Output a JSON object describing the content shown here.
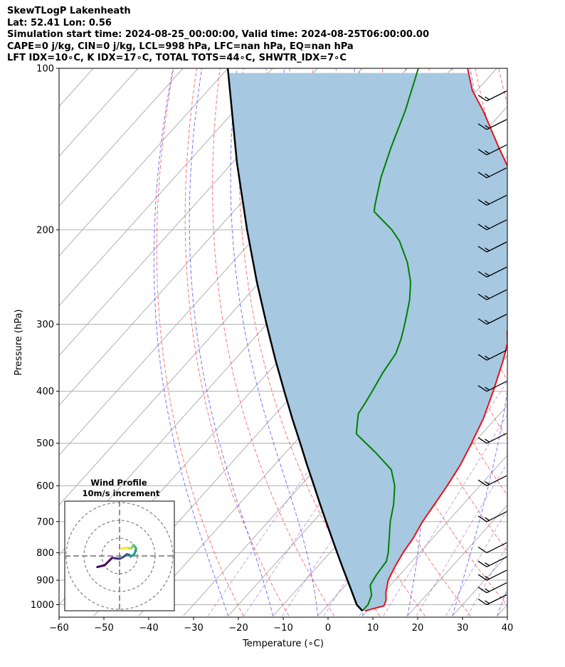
{
  "title_lines": [
    "SkewTLogP Lakenheath",
    "Lat: 52.41   Lon: 0.56",
    "Simulation start time: 2024-08-25_00:00:00, Valid time: 2024-08-25T06:00:00.00",
    "CAPE=0 j/kg, CIN=0 j/kg, LCL=998 hPa, LFC=nan hPa, EQ=nan hPa",
    "LFT IDX=10∘C, K IDX=17∘C, TOTAL TOTS=44∘C, SHWTR_IDX=7∘C"
  ],
  "chart_data": {
    "type": "line",
    "xlabel": "Temperature (∘C)",
    "ylabel": "Pressure (hPa)",
    "xlim": [
      -60,
      40
    ],
    "ylim": [
      1050,
      100
    ],
    "y_scale": "log",
    "x_ticks": [
      -60,
      -50,
      -40,
      -30,
      -20,
      -10,
      0,
      10,
      20,
      30,
      40
    ],
    "y_ticks": [
      1000,
      900,
      800,
      700,
      600,
      500,
      400,
      300,
      200,
      100
    ],
    "grid": true,
    "skew": true,
    "series": [
      {
        "name": "",
        "color": "#e8111a",
        "description": "temperature",
        "points": [
          [
            1027,
            9.5
          ],
          [
            1005,
            12.7
          ],
          [
            980,
            12.0
          ],
          [
            950,
            10.5
          ],
          [
            900,
            8.5
          ],
          [
            850,
            7.3
          ],
          [
            800,
            6.3
          ],
          [
            750,
            5.6
          ],
          [
            700,
            4.4
          ],
          [
            650,
            3.6
          ],
          [
            600,
            2.7
          ],
          [
            550,
            1.5
          ],
          [
            500,
            -0.4
          ],
          [
            450,
            -2.7
          ],
          [
            400,
            -6.0
          ],
          [
            350,
            -10.0
          ],
          [
            325,
            -12.5
          ],
          [
            310,
            -14.8
          ],
          [
            300,
            -15.7
          ],
          [
            290,
            -16.5
          ],
          [
            280,
            -17.5
          ],
          [
            250,
            -21.8
          ],
          [
            230,
            -25.5
          ],
          [
            210,
            -29.6
          ],
          [
            200,
            -32.3
          ],
          [
            190,
            -35.0
          ],
          [
            180,
            -37.6
          ],
          [
            170,
            -40.5
          ],
          [
            160,
            -44.3
          ],
          [
            150,
            -49.0
          ],
          [
            140,
            -53.9
          ],
          [
            130,
            -59.0
          ],
          [
            120,
            -64.5
          ],
          [
            110,
            -71.0
          ],
          [
            100,
            -76.5
          ]
        ]
      },
      {
        "name": "",
        "color": "#008000",
        "description": "dewpoint",
        "points": [
          [
            1027,
            8.9
          ],
          [
            1000,
            8.9
          ],
          [
            960,
            7.8
          ],
          [
            920,
            5.5
          ],
          [
            880,
            4.8
          ],
          [
            830,
            4.3
          ],
          [
            800,
            3.0
          ],
          [
            750,
            0.2
          ],
          [
            700,
            -2.8
          ],
          [
            650,
            -5.5
          ],
          [
            600,
            -9.0
          ],
          [
            560,
            -13.0
          ],
          [
            520,
            -20.0
          ],
          [
            485,
            -27.0
          ],
          [
            480,
            -28.0
          ],
          [
            460,
            -29.8
          ],
          [
            440,
            -31.6
          ],
          [
            420,
            -32.2
          ],
          [
            400,
            -33.0
          ],
          [
            370,
            -34.3
          ],
          [
            340,
            -35.3
          ],
          [
            320,
            -37.0
          ],
          [
            305,
            -38.6
          ],
          [
            290,
            -40.4
          ],
          [
            270,
            -43.0
          ],
          [
            250,
            -46.4
          ],
          [
            230,
            -51.0
          ],
          [
            210,
            -57.0
          ],
          [
            200,
            -61.0
          ],
          [
            190,
            -66.0
          ],
          [
            185,
            -68.6
          ],
          [
            180,
            -69.7
          ],
          [
            160,
            -73.9
          ],
          [
            140,
            -77.8
          ],
          [
            120,
            -81.9
          ],
          [
            100,
            -87.5
          ]
        ]
      },
      {
        "name": "",
        "color": "#000000",
        "description": "parcel",
        "points": [
          [
            1027,
            8.9
          ],
          [
            1000,
            6.4
          ],
          [
            950,
            3.0
          ],
          [
            900,
            -0.6
          ],
          [
            850,
            -4.4
          ],
          [
            800,
            -8.4
          ],
          [
            750,
            -12.6
          ],
          [
            700,
            -17.1
          ],
          [
            650,
            -21.9
          ],
          [
            600,
            -27.0
          ],
          [
            550,
            -32.6
          ],
          [
            500,
            -38.6
          ],
          [
            450,
            -45.3
          ],
          [
            400,
            -52.6
          ],
          [
            350,
            -60.8
          ],
          [
            300,
            -70.0
          ],
          [
            250,
            -80.7
          ],
          [
            200,
            -93.3
          ],
          [
            150,
            -109.0
          ],
          [
            100,
            -130.0
          ]
        ]
      }
    ],
    "isotherm_step": 10,
    "dry_adiabats_theta_K": [
      253,
      263,
      273,
      283,
      293,
      303,
      313,
      323,
      333,
      343,
      353,
      363,
      373,
      383,
      393,
      403,
      413
    ],
    "moist_adiabats_Tbase_C": [
      -20,
      -10,
      0,
      10,
      20,
      30,
      40
    ],
    "mixing_ratio_gkg": [
      0.5,
      1,
      2,
      4,
      7,
      10,
      16,
      24,
      32
    ],
    "wind_barbs": [
      {
        "p": 1000,
        "speed_kt": 15
      },
      {
        "p": 950,
        "speed_kt": 15
      },
      {
        "p": 900,
        "speed_kt": 15
      },
      {
        "p": 850,
        "speed_kt": 15
      },
      {
        "p": 800,
        "speed_kt": 10
      },
      {
        "p": 700,
        "speed_kt": 15
      },
      {
        "p": 600,
        "speed_kt": 15
      },
      {
        "p": 500,
        "speed_kt": 15
      },
      {
        "p": 400,
        "speed_kt": 15
      },
      {
        "p": 350,
        "speed_kt": 15
      },
      {
        "p": 300,
        "speed_kt": 15
      },
      {
        "p": 270,
        "speed_kt": 15
      },
      {
        "p": 245,
        "speed_kt": 15
      },
      {
        "p": 220,
        "speed_kt": 15
      },
      {
        "p": 200,
        "speed_kt": 15
      },
      {
        "p": 180,
        "speed_kt": 15
      },
      {
        "p": 160,
        "speed_kt": 15
      },
      {
        "p": 145,
        "speed_kt": 15
      },
      {
        "p": 130,
        "speed_kt": 15
      },
      {
        "p": 115,
        "speed_kt": 15
      }
    ]
  },
  "inset": {
    "title": "Wind Profile",
    "subtitle": "10m/s increment",
    "hodograph_uv": [
      [
        -6,
        -3
      ],
      [
        -4,
        -2.5
      ],
      [
        -2,
        -0.5
      ],
      [
        0,
        -0.8
      ],
      [
        1,
        -0.3
      ],
      [
        2,
        0.5
      ],
      [
        2.7,
        0.3
      ],
      [
        3,
        -0.2
      ],
      [
        4,
        0.5
      ],
      [
        4.5,
        2
      ],
      [
        3.8,
        3
      ],
      [
        3.5,
        2.5
      ],
      [
        3.0,
        2.0
      ],
      [
        2.0,
        2.2
      ],
      [
        0.5,
        2.0
      ]
    ]
  },
  "colors": {
    "temperature": "#e8111a",
    "dewpoint": "#008000",
    "parcel": "#000000",
    "cape_fill": "#a6c8e1",
    "isotherm": "#b0b0b0",
    "dry_adiabat": "#ff5a5a",
    "moist_adiabat": "#5b5bff",
    "mixing_ratio": "#9b3fd9"
  }
}
